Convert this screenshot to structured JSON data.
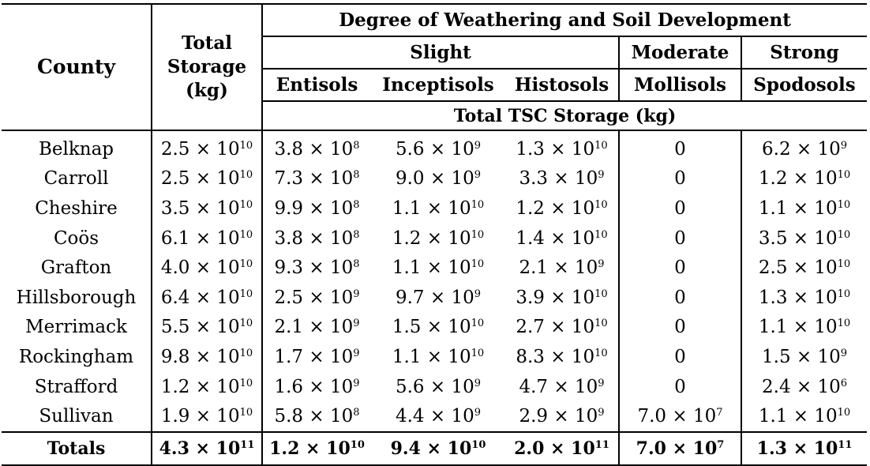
{
  "header": {
    "county": "County",
    "total_storage_l1": "Total",
    "total_storage_l2": "Storage",
    "total_storage_l3": "(kg)",
    "degree": "Degree of Weathering and Soil Development",
    "slight": "Slight",
    "moderate": "Moderate",
    "strong": "Strong",
    "entisols": "Entisols",
    "inceptisols": "Inceptisols",
    "histosols": "Histosols",
    "mollisols": "Mollisols",
    "spodosols": "Spodosols",
    "tsc": "Total TSC Storage (kg)"
  },
  "rows": [
    {
      "county": "Belknap",
      "cells": [
        [
          "2.5 × 10",
          "10"
        ],
        [
          "3.8 × 10",
          "8"
        ],
        [
          "5.6 × 10",
          "9"
        ],
        [
          "1.3 × 10",
          "10"
        ],
        [
          "0",
          ""
        ],
        [
          "6.2 × 10",
          "9"
        ]
      ]
    },
    {
      "county": "Carroll",
      "cells": [
        [
          "2.5 × 10",
          "10"
        ],
        [
          "7.3 × 10",
          "8"
        ],
        [
          "9.0 × 10",
          "9"
        ],
        [
          "3.3 × 10",
          "9"
        ],
        [
          "0",
          ""
        ],
        [
          "1.2 × 10",
          "10"
        ]
      ]
    },
    {
      "county": "Cheshire",
      "cells": [
        [
          "3.5 × 10",
          "10"
        ],
        [
          "9.9 × 10",
          "8"
        ],
        [
          "1.1 × 10",
          "10"
        ],
        [
          "1.2 × 10",
          "10"
        ],
        [
          "0",
          ""
        ],
        [
          "1.1 × 10",
          "10"
        ]
      ]
    },
    {
      "county": "Coös",
      "cells": [
        [
          "6.1 × 10",
          "10"
        ],
        [
          "3.8 × 10",
          "8"
        ],
        [
          "1.2 × 10",
          "10"
        ],
        [
          "1.4 × 10",
          "10"
        ],
        [
          "0",
          ""
        ],
        [
          "3.5 × 10",
          "10"
        ]
      ]
    },
    {
      "county": "Grafton",
      "cells": [
        [
          "4.0 × 10",
          "10"
        ],
        [
          "9.3 × 10",
          "8"
        ],
        [
          "1.1 × 10",
          "10"
        ],
        [
          "2.1 × 10",
          "9"
        ],
        [
          "0",
          ""
        ],
        [
          "2.5 × 10",
          "10"
        ]
      ]
    },
    {
      "county": "Hillsborough",
      "cells": [
        [
          "6.4 × 10",
          "10"
        ],
        [
          "2.5 × 10",
          "9"
        ],
        [
          "9.7 × 10",
          "9"
        ],
        [
          "3.9 × 10",
          "10"
        ],
        [
          "0",
          ""
        ],
        [
          "1.3 × 10",
          "10"
        ]
      ]
    },
    {
      "county": "Merrimack",
      "cells": [
        [
          "5.5 × 10",
          "10"
        ],
        [
          "2.1 × 10",
          "9"
        ],
        [
          "1.5 × 10",
          "10"
        ],
        [
          "2.7 × 10",
          "10"
        ],
        [
          "0",
          ""
        ],
        [
          "1.1 × 10",
          "10"
        ]
      ]
    },
    {
      "county": "Rockingham",
      "cells": [
        [
          "9.8 × 10",
          "10"
        ],
        [
          "1.7 × 10",
          "9"
        ],
        [
          "1.1 × 10",
          "10"
        ],
        [
          "8.3 × 10",
          "10"
        ],
        [
          "0",
          ""
        ],
        [
          "1.5 × 10",
          "9"
        ]
      ]
    },
    {
      "county": "Strafford",
      "cells": [
        [
          "1.2 × 10",
          "10"
        ],
        [
          "1.6 × 10",
          "9"
        ],
        [
          "5.6 × 10",
          "9"
        ],
        [
          "4.7 × 10",
          "9"
        ],
        [
          "0",
          ""
        ],
        [
          "2.4 × 10",
          "6"
        ]
      ]
    },
    {
      "county": "Sullivan",
      "cells": [
        [
          "1.9 × 10",
          "10"
        ],
        [
          "5.8 × 10",
          "8"
        ],
        [
          "4.4 × 10",
          "9"
        ],
        [
          "2.9 × 10",
          "9"
        ],
        [
          "7.0 × 10",
          "7"
        ],
        [
          "1.1 × 10",
          "10"
        ]
      ]
    }
  ],
  "totals": {
    "label": "Totals",
    "cells": [
      [
        "4.3 × 10",
        "11"
      ],
      [
        "1.2 × 10",
        "10"
      ],
      [
        "9.4 × 10",
        "10"
      ],
      [
        "2.0 × 10",
        "11"
      ],
      [
        "7.0 × 10",
        "7"
      ],
      [
        "1.3 × 10",
        "11"
      ]
    ]
  }
}
